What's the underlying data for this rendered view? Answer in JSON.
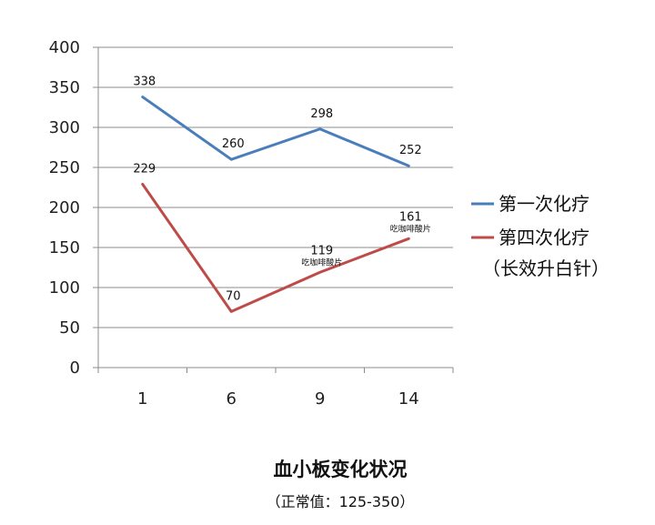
{
  "chart_data": {
    "type": "line",
    "title": "血小板变化状况",
    "subtitle": "（正常值：125-350）",
    "categories": [
      "1",
      "6",
      "9",
      "14"
    ],
    "ylim": [
      0,
      400
    ],
    "yticks": [
      0,
      50,
      100,
      150,
      200,
      250,
      300,
      350,
      400
    ],
    "grid": true,
    "legend_position": "right",
    "series": [
      {
        "name": "第一次化疗",
        "color": "#4a7ebb",
        "values": [
          338,
          260,
          298,
          252
        ],
        "labels": [
          "338",
          "260",
          "298",
          "252"
        ],
        "notes": [
          "",
          "",
          "",
          ""
        ]
      },
      {
        "name": "第四次化疗",
        "name_extra": "（长效升白针）",
        "color": "#be4b48",
        "values": [
          229,
          70,
          119,
          161
        ],
        "labels": [
          "229",
          "70",
          "119",
          "161"
        ],
        "notes": [
          "",
          "",
          "吃咖啡酸片",
          "吃咖啡酸片"
        ]
      }
    ]
  }
}
